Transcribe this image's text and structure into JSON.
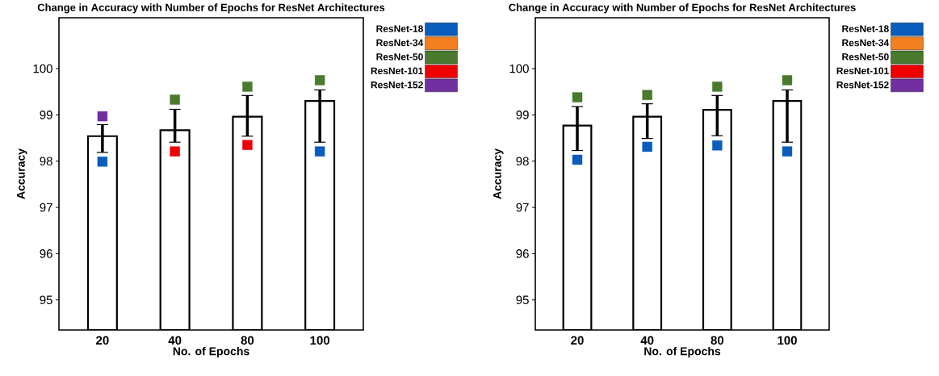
{
  "chart_data": [
    {
      "type": "bar",
      "title": "Change in Accuracy with Number of Epochs for ResNet Architectures",
      "xlabel": "No. of Epochs",
      "ylabel": "Accuracy",
      "categories": [
        "20",
        "40",
        "80",
        "100"
      ],
      "ylim": [
        94.35,
        101.1
      ],
      "yticks": [
        95,
        96,
        97,
        98,
        99,
        100
      ],
      "legend": "top right",
      "series": [
        {
          "color": "#ffffff",
          "values": [
            98.54,
            98.67,
            98.96,
            99.3
          ],
          "errors": [
            [
              98.19,
              98.79
            ],
            [
              98.41,
              99.12
            ],
            [
              98.54,
              99.42
            ],
            [
              98.41,
              99.54
            ]
          ]
        },
        {
          "type": "scatter",
          "name": "ResNet-18",
          "color": "#0a5cbd",
          "marker": "square",
          "x": [
            "20",
            "40",
            "80",
            "100"
          ],
          "values": [
            97.99,
            null,
            null,
            98.21
          ]
        },
        {
          "type": "scatter",
          "name": "ResNet-34",
          "color": "#f47f20",
          "marker": "square",
          "x": [
            "20",
            "40",
            "80",
            "100"
          ],
          "values": [
            null,
            null,
            null,
            null
          ]
        },
        {
          "type": "scatter",
          "name": "ResNet-50",
          "color": "#4a7a2e",
          "marker": "square",
          "x": [
            "20",
            "40",
            "80",
            "100"
          ],
          "values": [
            null,
            99.33,
            99.61,
            99.75
          ]
        },
        {
          "type": "scatter",
          "name": "ResNet-101",
          "color": "#ee0000",
          "marker": "square",
          "x": [
            "20",
            "40",
            "80",
            "100"
          ],
          "values": [
            null,
            98.21,
            98.35,
            null
          ]
        },
        {
          "type": "scatter",
          "name": "ResNet-152",
          "color": "#7030a0",
          "marker": "square",
          "x": [
            "20",
            "40",
            "80",
            "100"
          ],
          "values": [
            98.97,
            null,
            null,
            null
          ]
        }
      ]
    },
    {
      "type": "bar",
      "title": "Change in Accuracy with Number of Epochs for ResNet Architectures",
      "xlabel": "No. of Epochs",
      "ylabel": "Accuracy",
      "categories": [
        "20",
        "40",
        "80",
        "100"
      ],
      "ylim": [
        94.35,
        101.1
      ],
      "yticks": [
        95,
        96,
        97,
        98,
        99,
        100
      ],
      "legend": "top right",
      "series": [
        {
          "color": "#ffffff",
          "values": [
            98.77,
            98.96,
            99.11,
            99.3
          ],
          "errors": [
            [
              98.23,
              99.18
            ],
            [
              98.49,
              99.24
            ],
            [
              98.55,
              99.42
            ],
            [
              98.41,
              99.54
            ]
          ]
        },
        {
          "type": "scatter",
          "name": "ResNet-18",
          "color": "#0a5cbd",
          "marker": "square",
          "x": [
            "20",
            "40",
            "80",
            "100"
          ],
          "values": [
            98.03,
            98.31,
            98.34,
            98.21
          ]
        },
        {
          "type": "scatter",
          "name": "ResNet-34",
          "color": "#f47f20",
          "marker": "square",
          "x": [
            "20",
            "40",
            "80",
            "100"
          ],
          "values": [
            null,
            null,
            null,
            null
          ]
        },
        {
          "type": "scatter",
          "name": "ResNet-50",
          "color": "#4a7a2e",
          "marker": "square",
          "x": [
            "20",
            "40",
            "80",
            "100"
          ],
          "values": [
            99.38,
            99.43,
            99.61,
            99.75
          ]
        },
        {
          "type": "scatter",
          "name": "ResNet-101",
          "color": "#ee0000",
          "marker": "square",
          "x": [
            "20",
            "40",
            "80",
            "100"
          ],
          "values": [
            null,
            null,
            null,
            null
          ]
        },
        {
          "type": "scatter",
          "name": "ResNet-152",
          "color": "#7030a0",
          "marker": "square",
          "x": [
            "20",
            "40",
            "80",
            "100"
          ],
          "values": [
            null,
            null,
            null,
            null
          ]
        }
      ]
    }
  ]
}
